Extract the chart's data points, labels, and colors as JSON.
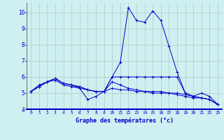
{
  "xlabel": "Graphe des températures (°c)",
  "background_color": "#cff0f0",
  "grid_color": "#b0c8c8",
  "line_color": "#0000cc",
  "ylim": [
    4,
    10.6
  ],
  "xlim": [
    -0.5,
    23.5
  ],
  "yticks": [
    4,
    5,
    6,
    7,
    8,
    9,
    10
  ],
  "xticks": [
    0,
    1,
    2,
    3,
    4,
    5,
    6,
    7,
    8,
    9,
    10,
    11,
    12,
    13,
    14,
    15,
    16,
    17,
    18,
    19,
    20,
    21,
    22,
    23
  ],
  "series": [
    [
      5.1,
      5.4,
      5.7,
      5.9,
      5.6,
      5.5,
      5.3,
      4.6,
      4.8,
      5.1,
      6.0,
      6.9,
      10.3,
      9.5,
      9.4,
      10.1,
      9.5,
      7.9,
      6.3,
      5.0,
      4.8,
      5.0,
      4.8,
      4.3
    ],
    [
      5.1,
      5.4,
      5.7,
      5.9,
      5.6,
      5.5,
      5.4,
      5.2,
      5.1,
      5.1,
      5.7,
      5.5,
      5.3,
      5.2,
      5.1,
      5.0,
      5.0,
      5.0,
      4.9,
      4.8,
      4.7,
      4.7,
      4.6,
      4.3
    ],
    [
      5.1,
      5.4,
      5.7,
      5.9,
      5.6,
      5.5,
      5.4,
      5.2,
      5.1,
      5.1,
      6.0,
      6.0,
      6.0,
      6.0,
      6.0,
      6.0,
      6.0,
      6.0,
      6.0,
      5.0,
      4.8,
      4.7,
      4.6,
      4.3
    ],
    [
      5.1,
      5.5,
      5.7,
      5.8,
      5.5,
      5.4,
      5.3,
      5.2,
      5.1,
      5.1,
      5.3,
      5.2,
      5.2,
      5.1,
      5.1,
      5.1,
      5.1,
      5.0,
      5.0,
      4.9,
      4.8,
      4.7,
      4.6,
      4.3
    ]
  ]
}
